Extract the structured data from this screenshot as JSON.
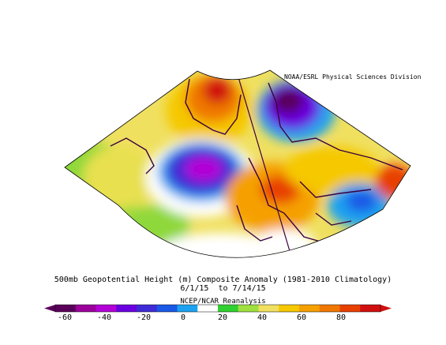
{
  "credit": "NOAA/ESRL Physical Sciences Division",
  "title": "500mb Geopotential Height (m) Composite Anomaly (1981-2010 Climatology)",
  "dates": "6/1/15  to 7/14/15",
  "source": "NCEP/NCAR Reanalysis",
  "colorbar": {
    "ticks": [
      "-60",
      "-40",
      "-20",
      "0",
      "20",
      "40",
      "60",
      "80"
    ],
    "colors": [
      "#5a005a",
      "#9b009b",
      "#b200d6",
      "#6a00e0",
      "#3f2bd6",
      "#1a58e6",
      "#1ca2f0",
      "#ffffff",
      "#30d030",
      "#9fe040",
      "#f0e060",
      "#f5c800",
      "#f5a000",
      "#f07800",
      "#e84000",
      "#d01010"
    ]
  }
}
